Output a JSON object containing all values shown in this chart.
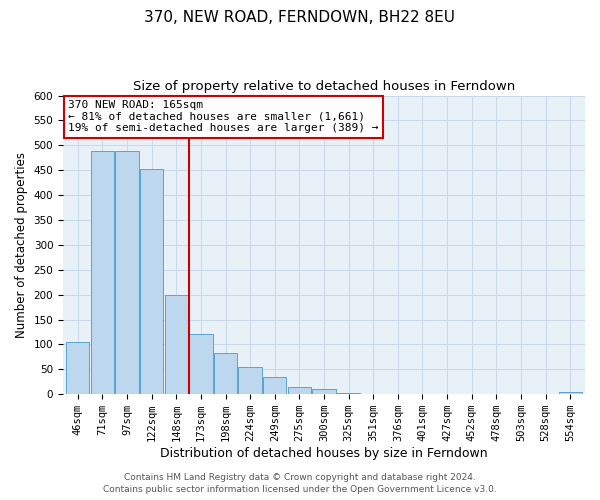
{
  "title": "370, NEW ROAD, FERNDOWN, BH22 8EU",
  "subtitle": "Size of property relative to detached houses in Ferndown",
  "xlabel": "Distribution of detached houses by size in Ferndown",
  "ylabel": "Number of detached properties",
  "bar_labels": [
    "46sqm",
    "71sqm",
    "97sqm",
    "122sqm",
    "148sqm",
    "173sqm",
    "198sqm",
    "224sqm",
    "249sqm",
    "275sqm",
    "300sqm",
    "325sqm",
    "351sqm",
    "376sqm",
    "401sqm",
    "427sqm",
    "452sqm",
    "478sqm",
    "503sqm",
    "528sqm",
    "554sqm"
  ],
  "bar_heights": [
    105,
    488,
    488,
    453,
    200,
    120,
    82,
    55,
    35,
    15,
    10,
    3,
    0,
    0,
    0,
    0,
    0,
    0,
    0,
    0,
    5
  ],
  "bar_color": "#bdd7ee",
  "bar_edge_color": "#5ba3d0",
  "grid_color": "#c8d8e8",
  "bg_color": "#e8f0f8",
  "vline_x": 4.5,
  "vline_color": "#cc0000",
  "annotation_title": "370 NEW ROAD: 165sqm",
  "annotation_line1": "← 81% of detached houses are smaller (1,661)",
  "annotation_line2": "19% of semi-detached houses are larger (389) →",
  "annotation_box_edge": "#cc0000",
  "ylim": [
    0,
    600
  ],
  "yticks": [
    0,
    50,
    100,
    150,
    200,
    250,
    300,
    350,
    400,
    450,
    500,
    550,
    600
  ],
  "footer1": "Contains HM Land Registry data © Crown copyright and database right 2024.",
  "footer2": "Contains public sector information licensed under the Open Government Licence v3.0.",
  "title_fontsize": 11,
  "subtitle_fontsize": 9.5,
  "xlabel_fontsize": 9,
  "ylabel_fontsize": 8.5,
  "tick_fontsize": 7.5,
  "footer_fontsize": 6.5,
  "annot_fontsize": 8
}
